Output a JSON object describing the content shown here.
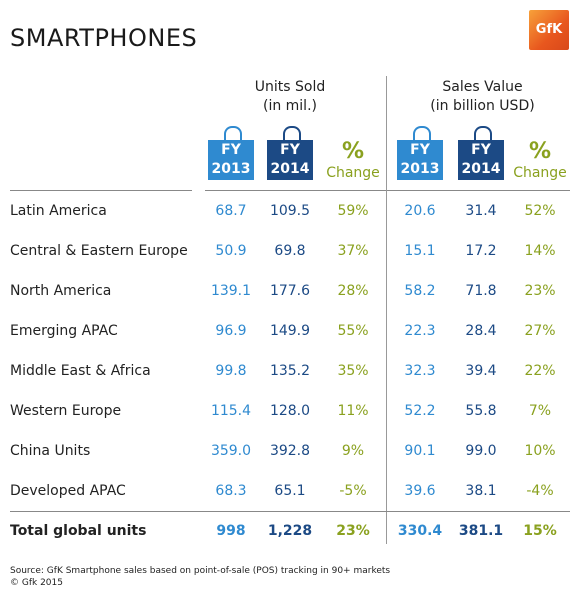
{
  "title": "SMARTPHONES",
  "logo_text": "GfK",
  "colors": {
    "fy2013": "#2f8ad0",
    "fy2014": "#1c4a85",
    "change": "#8aa11f",
    "logo": "#e8571e"
  },
  "units_header": {
    "line1": "Units Sold",
    "line2": "(in mil.)"
  },
  "sales_header": {
    "line1": "Sales Value",
    "line2": "(in billion USD)"
  },
  "col_fy2013": {
    "line1": "FY",
    "line2": "2013"
  },
  "col_fy2014": {
    "line1": "FY",
    "line2": "2014"
  },
  "col_change": {
    "symbol": "%",
    "label": "Change"
  },
  "footer": {
    "source": "Source: GfK Smartphone sales based on point-of-sale (POS) tracking in 90+ markets",
    "copyright": "© Gfk 2015"
  },
  "chart_data": {
    "type": "table",
    "title": "SMARTPHONES",
    "columns": [
      "Units Sold FY 2013",
      "Units Sold FY 2014",
      "Units Sold % Change",
      "Sales Value FY 2013",
      "Sales Value FY 2014",
      "Sales Value % Change"
    ],
    "rows": [
      {
        "region": "Latin America",
        "u13": "68.7",
        "u14": "109.5",
        "upc": "59%",
        "s13": "20.6",
        "s14": "31.4",
        "spc": "52%"
      },
      {
        "region": "Central & Eastern Europe",
        "u13": "50.9",
        "u14": "69.8",
        "upc": "37%",
        "s13": "15.1",
        "s14": "17.2",
        "spc": "14%"
      },
      {
        "region": "North America",
        "u13": "139.1",
        "u14": "177.6",
        "upc": "28%",
        "s13": "58.2",
        "s14": "71.8",
        "spc": "23%"
      },
      {
        "region": "Emerging APAC",
        "u13": "96.9",
        "u14": "149.9",
        "upc": "55%",
        "s13": "22.3",
        "s14": "28.4",
        "spc": "27%"
      },
      {
        "region": "Middle East & Africa",
        "u13": "99.8",
        "u14": "135.2",
        "upc": "35%",
        "s13": "32.3",
        "s14": "39.4",
        "spc": "22%"
      },
      {
        "region": "Western Europe",
        "u13": "115.4",
        "u14": "128.0",
        "upc": "11%",
        "s13": "52.2",
        "s14": "55.8",
        "spc": "7%"
      },
      {
        "region": "China Units",
        "u13": "359.0",
        "u14": "392.8",
        "upc": "9%",
        "s13": "90.1",
        "s14": "99.0",
        "spc": "10%"
      },
      {
        "region": "Developed APAC",
        "u13": "68.3",
        "u14": "65.1",
        "upc": "-5%",
        "s13": "39.6",
        "s14": "38.1",
        "spc": "-4%"
      }
    ],
    "total": {
      "region": "Total global units",
      "u13": "998",
      "u14": "1,228",
      "upc": "23%",
      "s13": "330.4",
      "s14": "381.1",
      "spc": "15%"
    }
  }
}
